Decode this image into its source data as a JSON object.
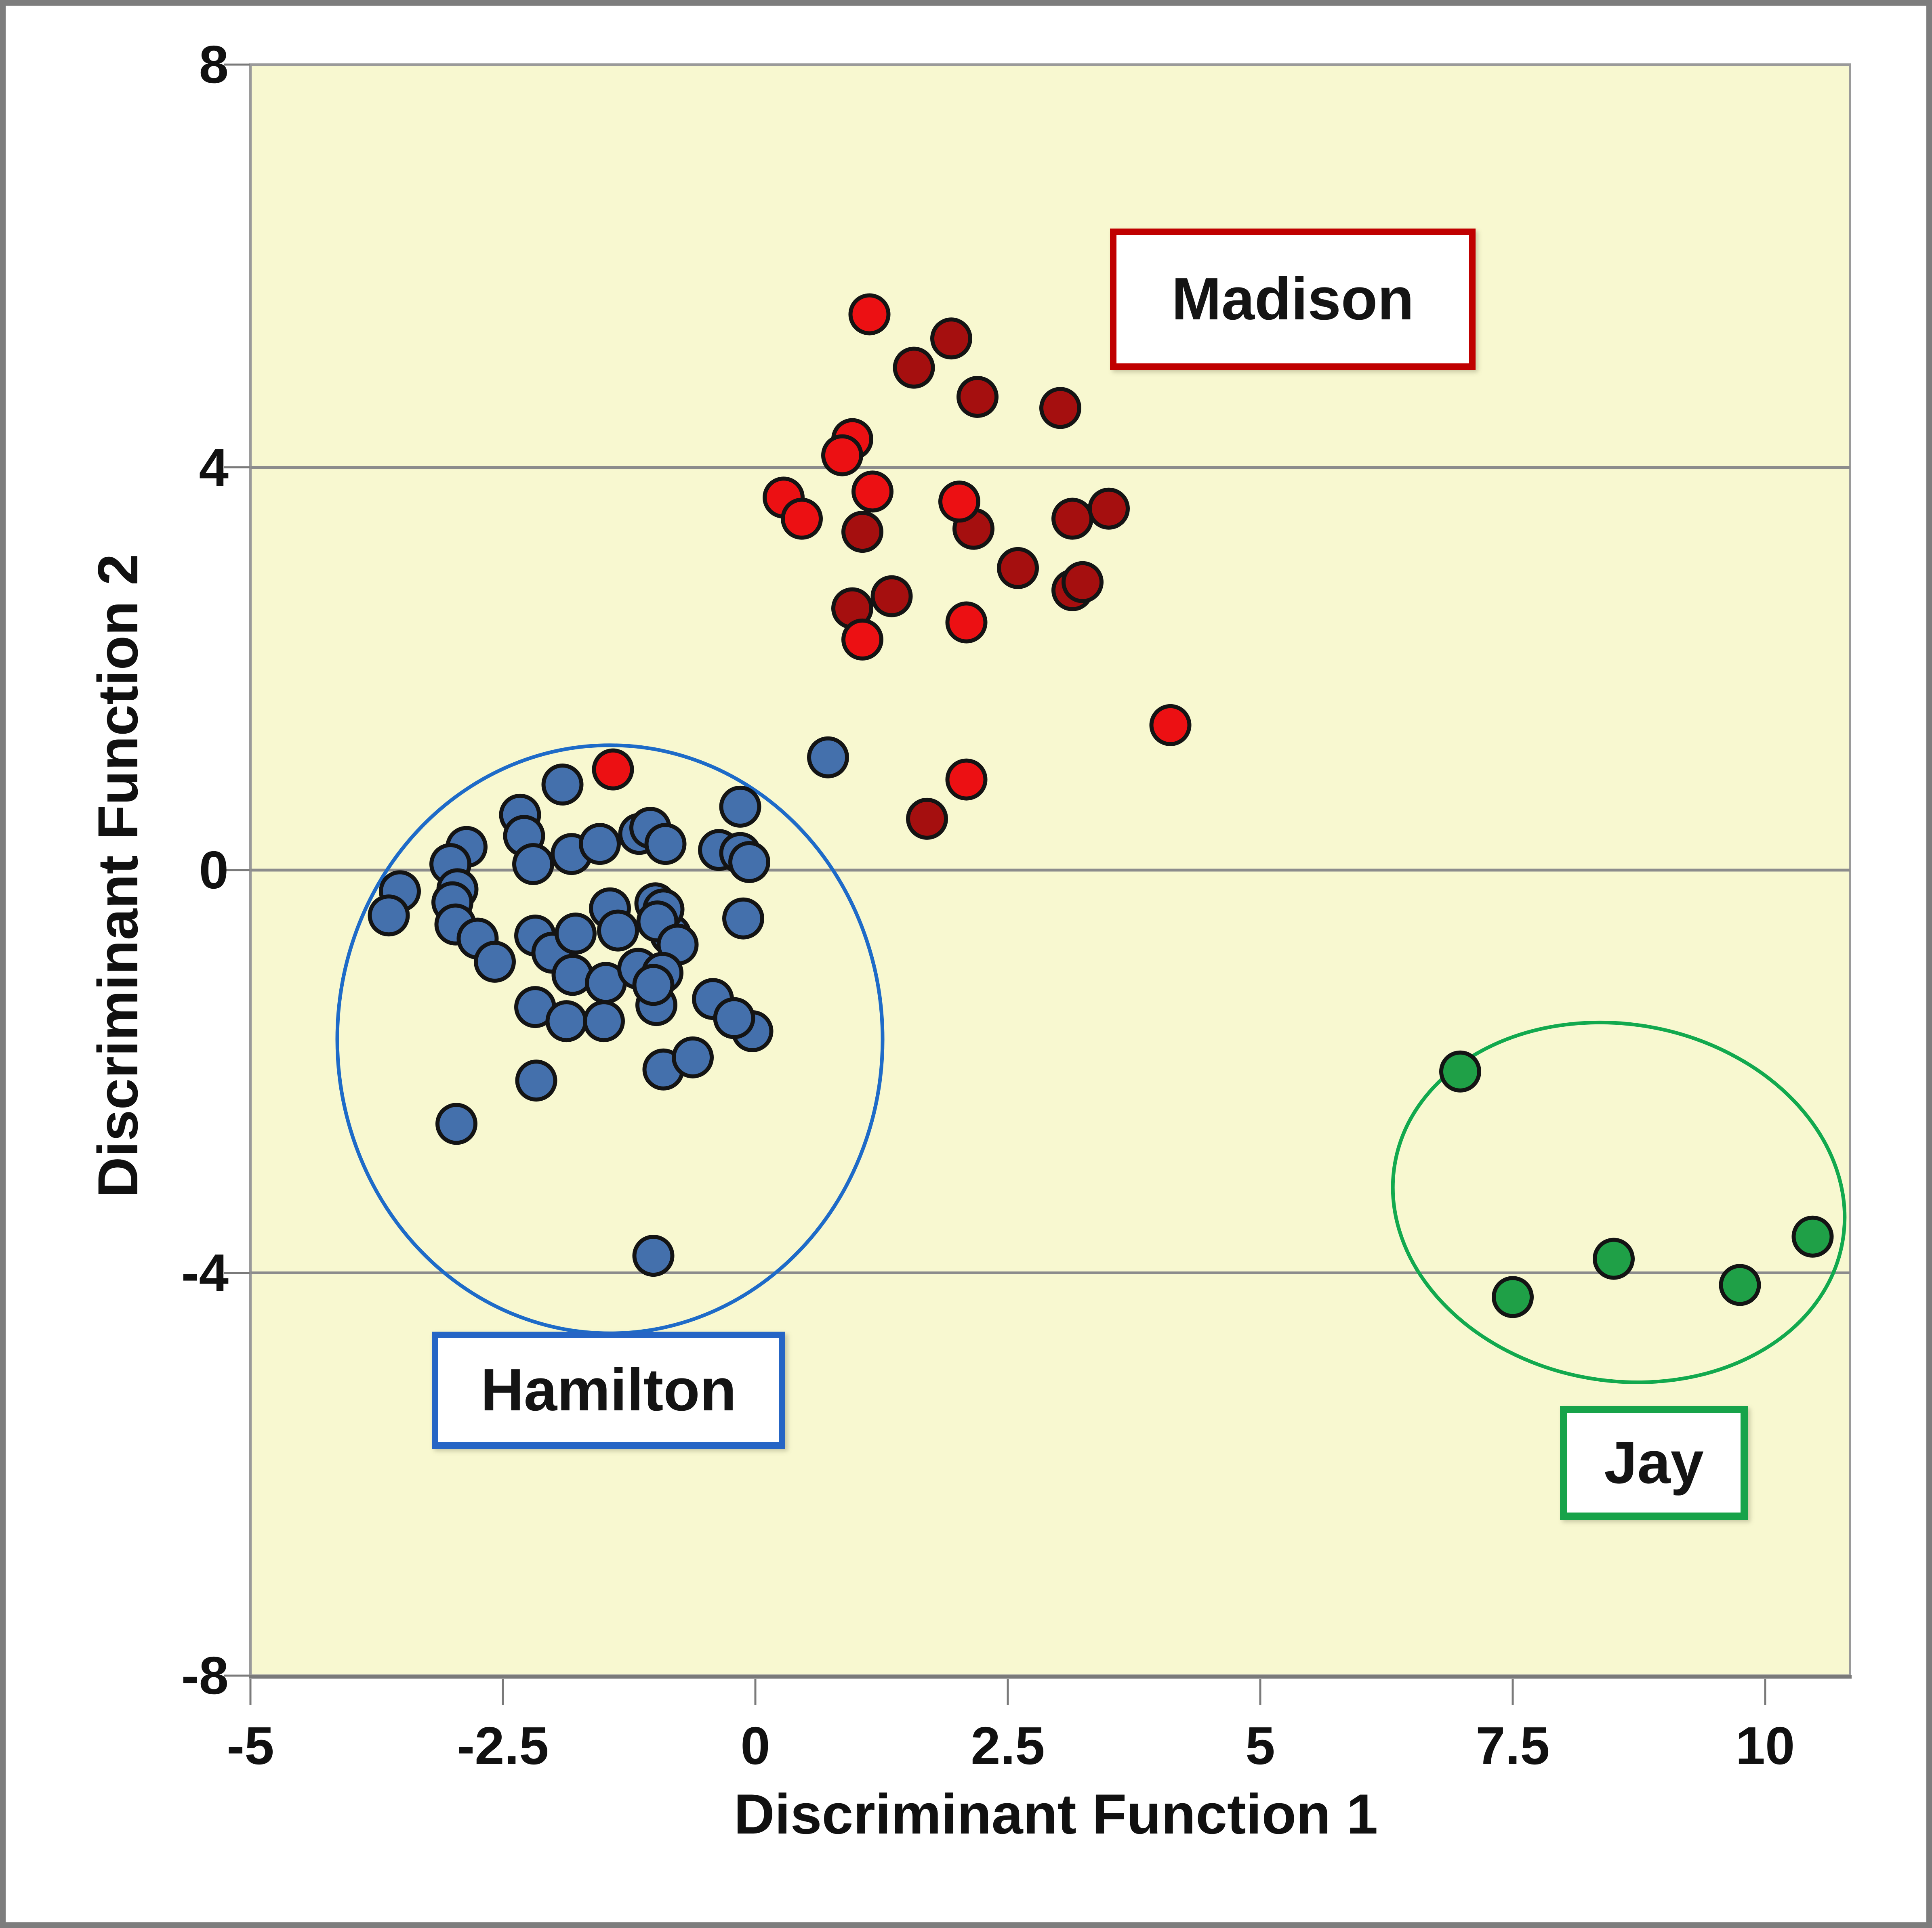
{
  "chart_data": {
    "type": "scatter",
    "title": "",
    "xlabel": "Discriminant Function 1",
    "ylabel": "Discriminant Function 2",
    "xlim": [
      -5,
      10.84
    ],
    "ylim": [
      -8,
      8
    ],
    "x_tick_values": [
      -5,
      -2.5,
      0,
      2.5,
      5,
      7.5,
      10
    ],
    "x_tick_labels": [
      "-5",
      "-2.5",
      "0",
      "2.5",
      "5",
      "7.5",
      "10"
    ],
    "y_tick_values": [
      8,
      4,
      0,
      -4,
      -8
    ],
    "y_tick_labels": [
      "8",
      "4",
      "0",
      "-4",
      "-8"
    ],
    "gridline_y_values": [
      4,
      0,
      -4
    ],
    "grid": "horizontal gridlines only",
    "legend_position": "none (clusters labeled with boxed annotations)",
    "plot_bg_color": "#f8f8d0",
    "grid_color": "#8c8c8c",
    "axis_line_color": "#7a7a7a",
    "marker_outline_color": "#141414",
    "series": [
      {
        "name": "Hamilton",
        "marker_color": "#4470ac",
        "points": [
          [
            -1.91,
            0.85
          ],
          [
            -2.33,
            0.55
          ],
          [
            -2.29,
            0.34
          ],
          [
            -2.86,
            0.23
          ],
          [
            -3.02,
            0.06
          ],
          [
            -2.2,
            0.06
          ],
          [
            -1.82,
            0.16
          ],
          [
            -1.54,
            0.26
          ],
          [
            -1.15,
            0.36
          ],
          [
            -1.04,
            0.42
          ],
          [
            -0.89,
            0.26
          ],
          [
            -3.52,
            -0.21
          ],
          [
            -3.63,
            -0.45
          ],
          [
            -2.95,
            -0.19
          ],
          [
            -3.0,
            -0.32
          ],
          [
            -2.97,
            -0.54
          ],
          [
            -2.75,
            -0.68
          ],
          [
            -2.58,
            -0.91
          ],
          [
            -2.18,
            -0.65
          ],
          [
            -2.01,
            -0.82
          ],
          [
            -1.78,
            -0.63
          ],
          [
            -1.44,
            -0.38
          ],
          [
            -1.36,
            -0.6
          ],
          [
            -0.99,
            -0.33
          ],
          [
            -0.84,
            -0.64
          ],
          [
            -1.81,
            -1.04
          ],
          [
            -1.48,
            -1.12
          ],
          [
            -1.16,
            -0.98
          ],
          [
            -0.98,
            -1.34
          ],
          [
            -2.18,
            -1.36
          ],
          [
            -1.87,
            -1.5
          ],
          [
            -1.5,
            -1.5
          ],
          [
            -0.15,
            0.63
          ],
          [
            -0.36,
            0.2
          ],
          [
            -0.15,
            0.17
          ],
          [
            -0.06,
            0.08
          ],
          [
            -0.91,
            -0.39
          ],
          [
            -0.97,
            -0.51
          ],
          [
            -0.77,
            -0.74
          ],
          [
            -0.92,
            -1.02
          ],
          [
            -1.01,
            -1.14
          ],
          [
            -0.12,
            -0.48
          ],
          [
            -0.42,
            -1.28
          ],
          [
            -0.03,
            -1.6
          ],
          [
            -0.91,
            -1.98
          ],
          [
            -0.62,
            -1.86
          ],
          [
            -0.21,
            -1.47
          ],
          [
            -2.96,
            -2.52
          ],
          [
            -2.17,
            -2.09
          ],
          [
            -1.01,
            -3.83
          ],
          [
            0.72,
            1.12
          ]
        ]
      },
      {
        "name": "Madison dark red",
        "marker_color": "#a50f0f",
        "points": [
          [
            1.94,
            5.28
          ],
          [
            1.57,
            4.99
          ],
          [
            2.2,
            4.7
          ],
          [
            3.02,
            4.59
          ],
          [
            1.06,
            3.36
          ],
          [
            2.16,
            3.39
          ],
          [
            3.14,
            3.49
          ],
          [
            3.5,
            3.59
          ],
          [
            2.6,
            3.0
          ],
          [
            3.14,
            2.78
          ],
          [
            3.24,
            2.86
          ],
          [
            1.35,
            2.72
          ],
          [
            0.96,
            2.6
          ],
          [
            1.7,
            0.51
          ]
        ]
      },
      {
        "name": "Madison bright red",
        "marker_color": "#ec1013",
        "points": [
          [
            1.13,
            5.52
          ],
          [
            0.96,
            4.28
          ],
          [
            0.86,
            4.12
          ],
          [
            1.16,
            3.76
          ],
          [
            0.28,
            3.7
          ],
          [
            0.46,
            3.49
          ],
          [
            2.02,
            3.66
          ],
          [
            2.09,
            2.46
          ],
          [
            1.06,
            2.29
          ],
          [
            4.11,
            1.44
          ],
          [
            2.09,
            0.9
          ],
          [
            -1.41,
            1.0
          ]
        ]
      },
      {
        "name": "Jay",
        "marker_color": "#1fa047",
        "points": [
          [
            6.98,
            -2.0
          ],
          [
            7.5,
            -4.24
          ],
          [
            8.5,
            -3.86
          ],
          [
            9.75,
            -4.12
          ],
          [
            10.47,
            -3.64
          ]
        ]
      }
    ],
    "cluster_ellipses": [
      {
        "label": "Hamilton",
        "color": "#1e6bc8",
        "center": [
          -1.44,
          -1.68
        ],
        "rx": 2.7,
        "ry": 2.92,
        "rotation_deg": 0
      },
      {
        "label": "Jay",
        "color": "#12a94e",
        "center": [
          8.55,
          -3.3
        ],
        "rx": 2.25,
        "ry": 1.77,
        "rotation_deg": 10
      }
    ],
    "cluster_labels": [
      {
        "text": "Madison",
        "border_color": "#c00000"
      },
      {
        "text": "Hamilton",
        "border_color": "#2565c5"
      },
      {
        "text": "Jay",
        "border_color": "#17a34a"
      }
    ]
  }
}
